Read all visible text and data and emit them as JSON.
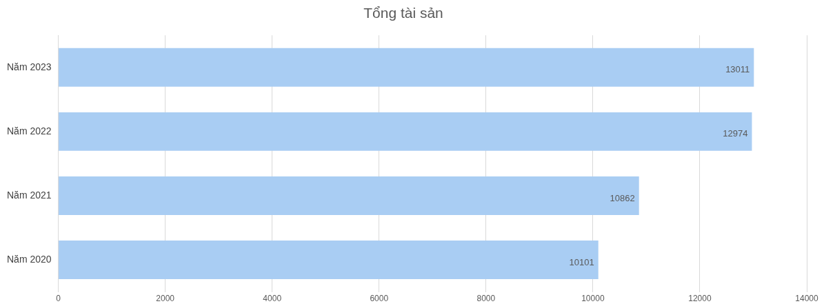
{
  "chart_data": {
    "type": "bar",
    "orientation": "horizontal",
    "title": "Tổng tài sản",
    "categories": [
      "Năm 2023",
      "Năm 2022",
      "Năm 2021",
      "Năm 2020"
    ],
    "values": [
      13011,
      12974,
      10862,
      10101
    ],
    "color": "#a9cdf3",
    "xlim": [
      0,
      14000
    ],
    "xticks": [
      0,
      2000,
      4000,
      6000,
      8000,
      10000,
      12000,
      14000
    ],
    "grid": "x",
    "legend": false,
    "data_labels": true
  }
}
